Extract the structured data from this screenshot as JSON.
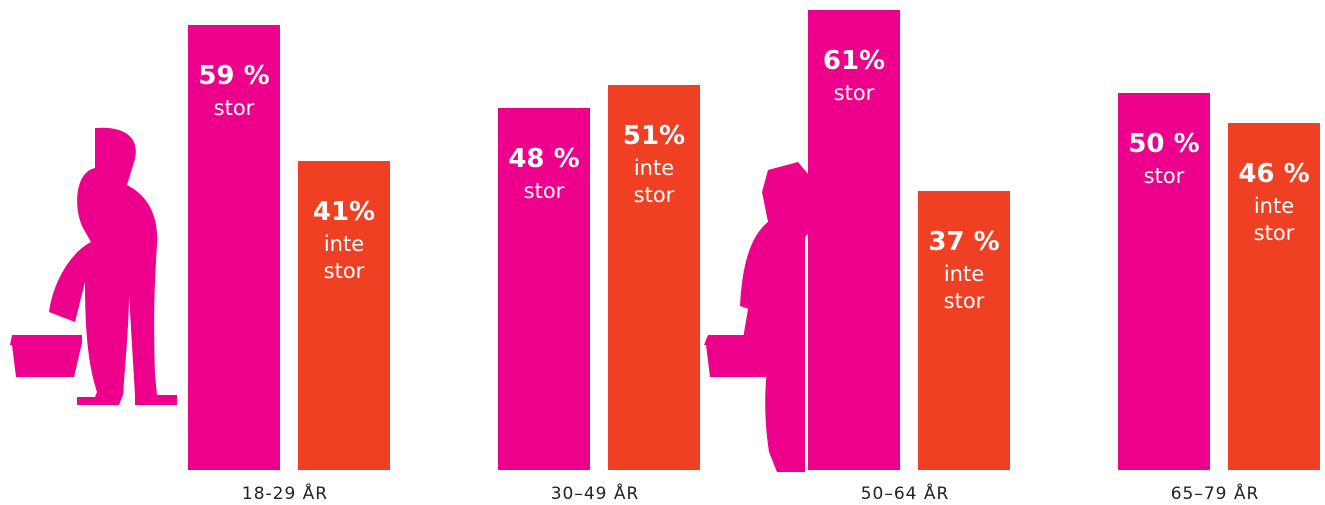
{
  "chart_data": {
    "type": "bar",
    "categories": [
      "18-29 ÅR",
      "30–49 ÅR",
      "50–64 ÅR",
      "65–79 ÅR"
    ],
    "series": [
      {
        "name": "stor",
        "color": "#ec008c",
        "values": [
          59,
          48,
          61,
          50
        ],
        "value_labels": [
          "59 %",
          "48 %",
          "61%",
          "50 %"
        ]
      },
      {
        "name": "inte stor",
        "color": "#ef4023",
        "values": [
          41,
          51,
          37,
          46
        ],
        "value_labels": [
          "41%",
          "51%",
          "37 %",
          "46 %"
        ]
      }
    ]
  }
}
